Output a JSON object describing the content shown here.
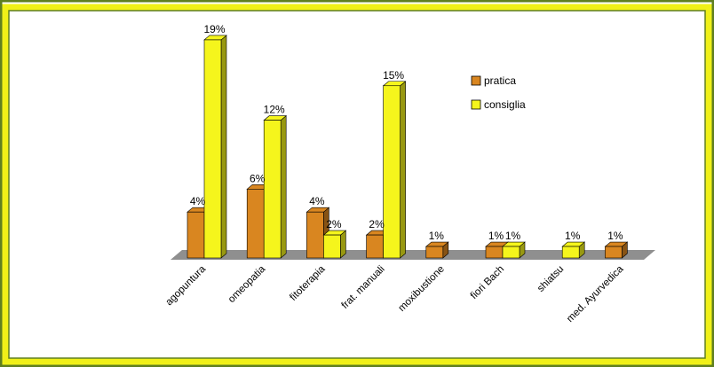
{
  "chart_data": {
    "type": "bar",
    "title": "",
    "xlabel": "",
    "ylabel": "",
    "categories": [
      "agopuntura",
      "omeopatia",
      "fitoterapia",
      "frat. manuali",
      "moxibustione",
      "fiori Bach",
      "shiatsu",
      "med. Ayurvedica"
    ],
    "series": [
      {
        "name": "pratica",
        "values": [
          4,
          6,
          4,
          2,
          1,
          1,
          null,
          1
        ],
        "labels": [
          "4%",
          "6%",
          "4%",
          "2%",
          "1%",
          "1%",
          "",
          "1%"
        ]
      },
      {
        "name": "consiglia",
        "values": [
          19,
          12,
          2,
          15,
          null,
          1,
          1,
          null
        ],
        "labels": [
          "19%",
          "12%",
          "2%",
          "15%",
          "",
          "1%",
          "1%",
          ""
        ]
      }
    ],
    "ylim": [
      0,
      20
    ],
    "grid": false,
    "legend_position": "top-right",
    "style": "3d-bars"
  },
  "colors": {
    "frame_dark": "#5f7f1f",
    "frame_yellow": "#f0f018",
    "pratica": "#d98620",
    "consiglia": "#f5f51c",
    "floor": "#8f8f8f"
  }
}
